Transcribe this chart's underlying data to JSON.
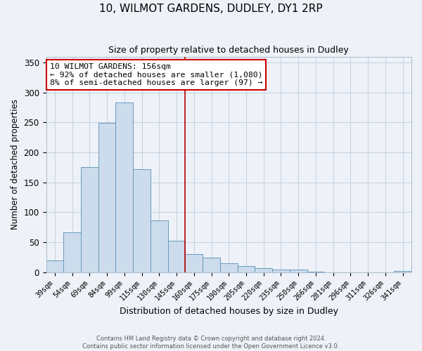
{
  "title": "10, WILMOT GARDENS, DUDLEY, DY1 2RP",
  "subtitle": "Size of property relative to detached houses in Dudley",
  "xlabel": "Distribution of detached houses by size in Dudley",
  "ylabel": "Number of detached properties",
  "bar_color": "#ccdcec",
  "bar_edge_color": "#6699bb",
  "grid_color": "#c8d4e4",
  "background_color": "#eef2f8",
  "vline_color": "#bb0000",
  "vline_index": 8,
  "categories": [
    "39sqm",
    "54sqm",
    "69sqm",
    "84sqm",
    "99sqm",
    "115sqm",
    "130sqm",
    "145sqm",
    "160sqm",
    "175sqm",
    "190sqm",
    "205sqm",
    "220sqm",
    "235sqm",
    "250sqm",
    "266sqm",
    "281sqm",
    "296sqm",
    "311sqm",
    "326sqm",
    "341sqm"
  ],
  "values": [
    20,
    67,
    176,
    249,
    283,
    172,
    86,
    53,
    30,
    24,
    15,
    10,
    7,
    5,
    5,
    1,
    0,
    0,
    0,
    0,
    2
  ],
  "annotation_title": "10 WILMOT GARDENS: 156sqm",
  "annotation_line1": "← 92% of detached houses are smaller (1,080)",
  "annotation_line2": "8% of semi-detached houses are larger (97) →",
  "annotation_box_color": "#ffffff",
  "annotation_box_edge": "#cc0000",
  "footer1": "Contains HM Land Registry data © Crown copyright and database right 2024.",
  "footer2": "Contains public sector information licensed under the Open Government Licence v3.0.",
  "ylim": [
    0,
    360
  ],
  "yticks": [
    0,
    50,
    100,
    150,
    200,
    250,
    300,
    350
  ],
  "figsize": [
    6.0,
    5.0
  ],
  "dpi": 100
}
